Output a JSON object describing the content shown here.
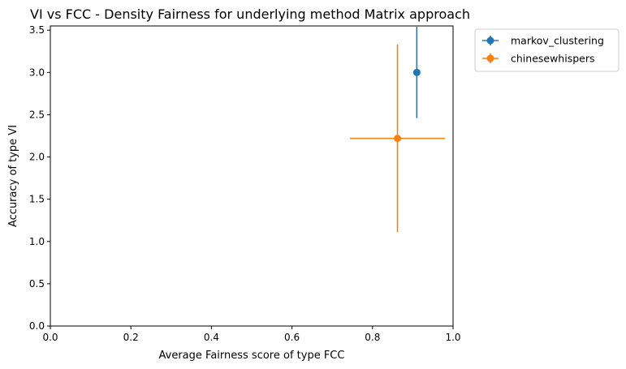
{
  "chart_data": {
    "type": "scatter",
    "title": "VI vs FCC - Density Fairness for underlying method Matrix approach",
    "xlabel": "Average Fairness score of type FCC",
    "ylabel": "Accuracy of type VI",
    "xlim": [
      0.0,
      1.0
    ],
    "ylim": [
      0.0,
      3.55
    ],
    "xticks": [
      "0.0",
      "0.2",
      "0.4",
      "0.6",
      "0.8",
      "1.0"
    ],
    "yticks": [
      "0.0",
      "0.5",
      "1.0",
      "1.5",
      "2.0",
      "2.5",
      "3.0",
      "3.5"
    ],
    "grid": false,
    "legend_position": "outside-top-right",
    "series": [
      {
        "name": "markov_clustering",
        "color": "#1f77b4",
        "x": 0.91,
        "y": 3.0,
        "xerr": 0.005,
        "yerr": 0.54
      },
      {
        "name": "chinesewhispers",
        "color": "#ff7f0e",
        "x": 0.862,
        "y": 2.22,
        "xerr": 0.118,
        "yerr": 1.11
      }
    ]
  }
}
